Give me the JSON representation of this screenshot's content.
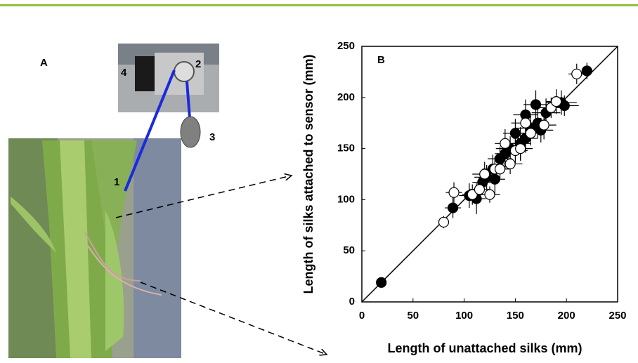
{
  "panel_a": {
    "label": "A",
    "callouts": [
      "1",
      "2",
      "3",
      "4"
    ]
  },
  "chart_data": {
    "type": "scatter",
    "panel_label": "B",
    "x_label": "Length of unattached silks (mm)",
    "y_label": "Length of silks attached to sensor (mm)",
    "xlim": [
      0,
      250
    ],
    "ylim": [
      0,
      250
    ],
    "xticks": [
      0,
      50,
      100,
      150,
      200,
      250
    ],
    "yticks": [
      0,
      50,
      100,
      150,
      200,
      250
    ],
    "identity_line": true,
    "series": [
      {
        "color": "#000000",
        "marker": "filled",
        "x": [
          19,
          89,
          105,
          112,
          118,
          122,
          128,
          135,
          140,
          145,
          150,
          155,
          160,
          165,
          170,
          172,
          175,
          180,
          195,
          198,
          220,
          160,
          130
        ],
        "values": [
          19,
          92,
          104,
          101,
          117,
          122,
          130,
          140,
          145,
          150,
          165,
          155,
          183,
          170,
          193,
          175,
          168,
          185,
          195,
          192,
          226,
          160,
          120
        ],
        "xerr": [
          3,
          8,
          10,
          9,
          10,
          12,
          10,
          12,
          10,
          14,
          12,
          10,
          12,
          15,
          12,
          10,
          12,
          14,
          15,
          14,
          5,
          12,
          10
        ],
        "yerr": [
          3,
          10,
          12,
          15,
          10,
          12,
          14,
          12,
          15,
          12,
          14,
          16,
          15,
          12,
          14,
          15,
          12,
          14,
          12,
          10,
          8,
          14,
          15
        ]
      },
      {
        "color": "#000000",
        "marker": "open",
        "x": [
          80,
          90,
          108,
          115,
          120,
          125,
          130,
          140,
          145,
          150,
          160,
          165,
          178,
          185,
          190,
          210,
          155,
          135
        ],
        "values": [
          78,
          107,
          105,
          110,
          125,
          105,
          130,
          155,
          135,
          148,
          175,
          165,
          173,
          190,
          196,
          223,
          150,
          130
        ],
        "xerr": [
          5,
          8,
          10,
          10,
          12,
          10,
          12,
          10,
          12,
          12,
          14,
          10,
          12,
          12,
          10,
          8,
          12,
          10
        ],
        "yerr": [
          6,
          10,
          10,
          12,
          12,
          8,
          12,
          14,
          10,
          12,
          14,
          12,
          14,
          10,
          12,
          10,
          12,
          10
        ]
      }
    ]
  }
}
